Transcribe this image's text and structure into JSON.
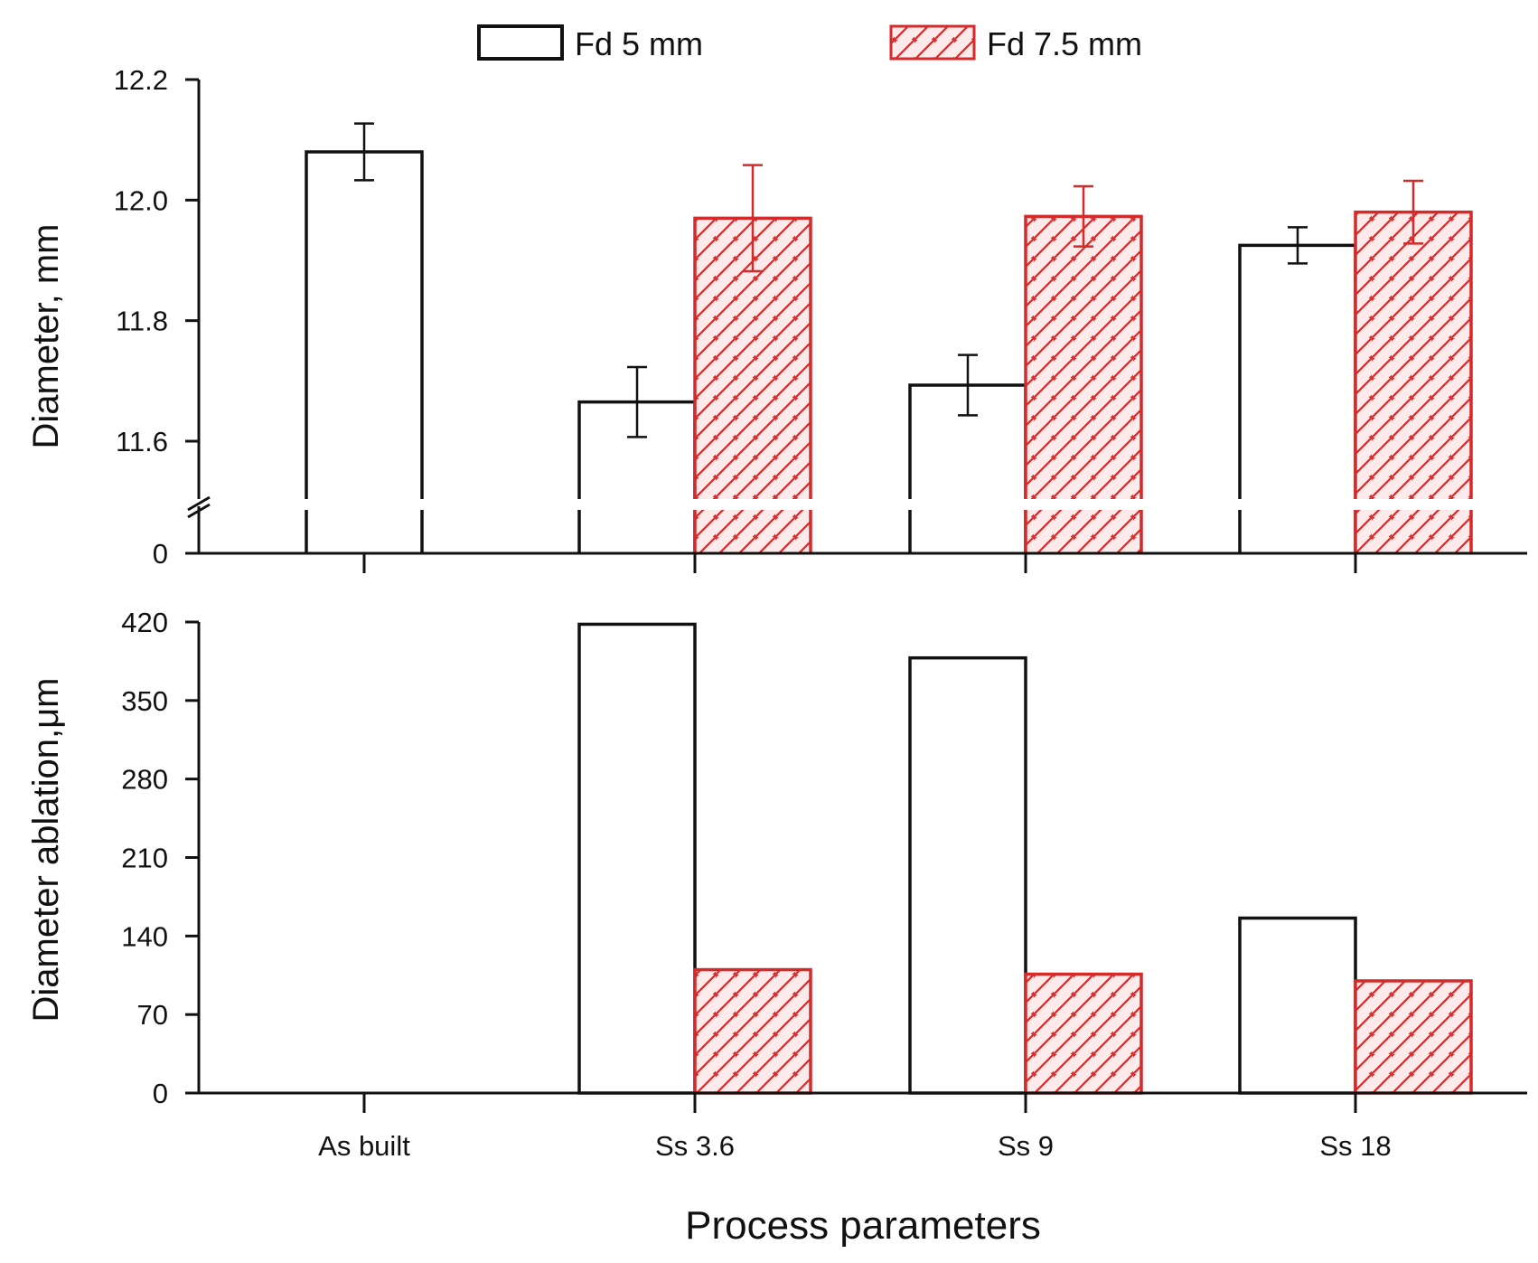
{
  "chart_data": {
    "type": "bar",
    "categories": [
      "As built",
      "Ss 3.6",
      "Ss 9",
      "Ss 18"
    ],
    "xlabel": "Process parameters",
    "legend": [
      {
        "name": "Fd 5 mm",
        "color": "#111111",
        "pattern": "none"
      },
      {
        "name": "Fd 7.5 mm",
        "color": "#d42a2a",
        "pattern": "hatch"
      }
    ],
    "legend_position": "top-center",
    "panels": [
      {
        "name": "diameter",
        "ylabel": "Diameter, mm",
        "ylim": [
          11.6,
          12.2
        ],
        "axis_break": true,
        "break_baseline_label": "0",
        "yticks": [
          11.6,
          11.8,
          12.0,
          12.2
        ],
        "ytick_labels": [
          "11.6",
          "11.8",
          "12.0",
          "12.2"
        ],
        "series": [
          {
            "name": "Fd 5 mm",
            "values": [
              12.08,
              11.665,
              11.693,
              11.925
            ],
            "errors": [
              0.047,
              0.058,
              0.05,
              0.03
            ]
          },
          {
            "name": "Fd 7.5 mm",
            "values": [
              null,
              11.97,
              11.973,
              11.98
            ],
            "errors": [
              null,
              0.088,
              0.05,
              0.052
            ]
          }
        ]
      },
      {
        "name": "ablation",
        "ylabel": "Diameter ablation,μm",
        "ylim": [
          0,
          420
        ],
        "yticks": [
          0,
          70,
          140,
          210,
          280,
          350,
          420
        ],
        "ytick_labels": [
          "0",
          "70",
          "140",
          "210",
          "280",
          "350",
          "420"
        ],
        "series": [
          {
            "name": "Fd 5 mm",
            "values": [
              0,
              418,
              388,
              156
            ]
          },
          {
            "name": "Fd 7.5 mm",
            "values": [
              null,
              110,
              106,
              100
            ]
          }
        ]
      }
    ],
    "colors": {
      "fd5": "#111111",
      "fd75": "#d42a2a",
      "hatch_bg": "#fdeaea"
    }
  }
}
